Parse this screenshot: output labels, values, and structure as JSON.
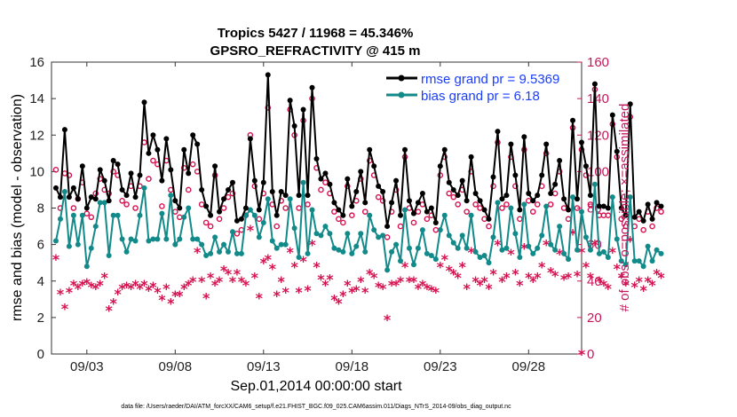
{
  "chart_data": {
    "type": "line",
    "title_line1": "Tropics 5427 / 11968 = 45.346%",
    "title_line2": "GPSRO_REFRACTIVITY @ 415 m",
    "xlabel": "Sep.01,2014 00:00:00 start",
    "ylabel_left": "rmse and bias (model - observation)",
    "ylabel_right": "# of obs: o=possible; ×=assimilated",
    "footer": "data file: /Users/raeder/DAI/ATM_forcXX/CAM6_setup/f.e21.FHIST_BGC.f09_025.CAM6assim.011/Diags_NTrS_2014-09/obs_diag_output.nc",
    "xlim": [
      1,
      31
    ],
    "ylim_left": [
      0,
      16
    ],
    "ylim_right": [
      0,
      160
    ],
    "x_ticks": [
      3,
      8,
      13,
      18,
      23,
      28
    ],
    "x_tick_labels": [
      "09/03",
      "09/08",
      "09/13",
      "09/18",
      "09/23",
      "09/28"
    ],
    "y_left_ticks": [
      "0",
      "2",
      "4",
      "6",
      "8",
      "10",
      "12",
      "14",
      "16"
    ],
    "y_right_ticks": [
      "0",
      "20",
      "40",
      "60",
      "80",
      "100",
      "120",
      "140",
      "160"
    ],
    "colors": {
      "rmse": "#000000",
      "bias": "#138a8a",
      "obs": "#d6114f",
      "legend_text": "#1a3cff"
    },
    "legend": [
      {
        "name": "rmse",
        "label": "rmse grand pr = 9.5369"
      },
      {
        "name": "bias",
        "label": "bias grand pr = 6.18"
      }
    ],
    "series": [
      {
        "name": "rmse",
        "x_start": 1.25,
        "x_step": 0.25,
        "values": [
          9.1,
          8.6,
          12.3,
          8.6,
          9.1,
          8.5,
          10.3,
          8.0,
          8.6,
          8.5,
          10.1,
          9.5,
          8.4,
          10.6,
          10.4,
          9.0,
          8.7,
          9.9,
          8.6,
          9.8,
          13.8,
          11.0,
          12.0,
          11.2,
          9.5,
          11.8,
          10.1,
          8.4,
          8.0,
          11.2,
          9.9,
          12.0,
          11.5,
          9.0,
          8.1,
          7.6,
          10.3,
          7.8,
          8.5,
          9.0,
          9.4,
          7.3,
          7.4,
          8.0,
          11.8,
          9.5,
          7.9,
          9.4,
          15.3,
          8.9,
          7.6,
          8.9,
          8.7,
          13.9,
          12.5,
          8.7,
          13.4,
          8.7,
          14.6,
          10.7,
          9.6,
          9.9,
          9.3,
          8.3,
          7.9,
          7.6,
          9.6,
          8.1,
          8.9,
          10.0,
          8.3,
          11.2,
          10.3,
          9.2,
          8.9,
          7.0,
          8.3,
          9.5,
          7.6,
          11.2,
          8.4,
          7.7,
          8.3,
          8.8,
          7.8,
          8.0,
          7.2,
          10.3,
          11.2,
          9.4,
          9.0,
          8.7,
          9.5,
          8.4,
          10.8,
          8.8,
          8.4,
          7.9,
          7.4,
          9.7,
          12.2,
          8.5,
          8.7,
          11.5,
          9.8,
          7.9,
          11.9,
          8.8,
          8.4,
          8.7,
          9.8,
          11.5,
          8.8,
          9.3,
          10.6,
          8.5,
          7.9,
          12.8,
          8.5,
          11.6,
          10.3,
          8.7,
          14.8,
          8.1,
          8.1,
          8.0,
          13.1,
          11.1,
          8.0,
          7.6,
          13.7,
          7.5,
          7.8,
          7.3,
          8.2,
          7.4,
          8.3,
          8.1
        ]
      },
      {
        "name": "bias",
        "x_start": 1.25,
        "x_step": 0.25,
        "values": [
          6.2,
          7.4,
          8.9,
          5.9,
          7.6,
          6.0,
          7.6,
          4.8,
          5.8,
          7.0,
          8.3,
          8.3,
          5.4,
          7.6,
          7.6,
          6.3,
          5.6,
          6.3,
          6.2,
          7.6,
          9.1,
          6.2,
          6.3,
          6.3,
          7.7,
          6.3,
          8.7,
          6.0,
          6.3,
          7.5,
          8.0,
          6.3,
          6.3,
          6.0,
          5.4,
          5.5,
          6.4,
          5.6,
          6.0,
          5.6,
          6.7,
          5.5,
          5.5,
          7.6,
          7.9,
          7.6,
          6.4,
          7.2,
          8.5,
          6.2,
          5.8,
          6.0,
          6.0,
          8.5,
          6.9,
          5.3,
          9.4,
          5.5,
          7.9,
          6.6,
          6.5,
          7.0,
          6.6,
          5.8,
          5.7,
          5.6,
          6.6,
          5.5,
          5.9,
          6.6,
          5.6,
          7.6,
          6.8,
          6.4,
          6.5,
          4.6,
          5.6,
          6.0,
          5.1,
          7.9,
          5.8,
          4.9,
          5.8,
          6.8,
          5.5,
          5.4,
          5.2,
          6.8,
          7.6,
          6.5,
          6.1,
          5.8,
          6.5,
          5.8,
          7.6,
          5.6,
          5.3,
          5.4,
          5.0,
          6.4,
          8.3,
          5.7,
          5.8,
          8.0,
          6.6,
          5.3,
          8.2,
          5.9,
          5.5,
          5.8,
          6.5,
          8.1,
          6.0,
          5.7,
          7.0,
          5.5,
          5.2,
          8.6,
          5.7,
          7.8,
          6.4,
          5.7,
          9.3,
          5.5,
          5.6,
          5.3,
          8.6,
          6.3,
          5.1,
          4.9,
          8.6,
          5.1,
          5.1,
          4.8,
          5.9,
          5.1,
          5.7,
          5.5
        ]
      },
      {
        "name": "obs_possible",
        "x_start": 1.25,
        "x_step": 0.25,
        "values": [
          101,
          80,
          99,
          98,
          80,
          85,
          94,
          77,
          75,
          88,
          96,
          90,
          88,
          100,
          98,
          84,
          82,
          92,
          80,
          92,
          116,
          96,
          106,
          104,
          81,
          106,
          90,
          78,
          75,
          102,
          90,
          104,
          100,
          82,
          72,
          70,
          98,
          74,
          80,
          86,
          88,
          66,
          68,
          76,
          120,
          92,
          74,
          88,
          135,
          82,
          70,
          84,
          80,
          134,
          120,
          80,
          128,
          82,
          140,
          102,
          90,
          94,
          88,
          78,
          74,
          72,
          92,
          76,
          84,
          96,
          78,
          106,
          98,
          86,
          84,
          64,
          78,
          90,
          70,
          108,
          80,
          72,
          78,
          82,
          74,
          76,
          68,
          98,
          108,
          88,
          86,
          82,
          90,
          78,
          100,
          82,
          80,
          74,
          70,
          92,
          116,
          80,
          82,
          108,
          92,
          74,
          112,
          84,
          78,
          82,
          92,
          110,
          82,
          88,
          100,
          80,
          74,
          124,
          80,
          112,
          98,
          82,
          145,
          76,
          76,
          76,
          126,
          108,
          74,
          70,
          130,
          70,
          74,
          68,
          78,
          70,
          80,
          78
        ]
      },
      {
        "name": "obs_assimilated",
        "x_start": 1.25,
        "x_step": 0.25,
        "values": [
          52,
          33,
          25,
          34,
          38,
          36,
          38,
          39,
          37,
          36,
          38,
          42,
          24,
          28,
          33,
          36,
          37,
          36,
          38,
          36,
          38,
          35,
          37,
          34,
          30,
          36,
          28,
          32,
          32,
          36,
          38,
          40,
          56,
          40,
          31,
          42,
          38,
          40,
          46,
          44,
          40,
          44,
          40,
          38,
          68,
          42,
          31,
          50,
          52,
          47,
          32,
          40,
          34,
          56,
          48,
          34,
          51,
          35,
          60,
          48,
          41,
          38,
          41,
          30,
          28,
          32,
          38,
          34,
          35,
          40,
          34,
          44,
          42,
          37,
          36,
          19,
          38,
          38,
          40,
          48,
          40,
          40,
          36,
          38,
          36,
          35,
          34,
          48,
          52,
          46,
          44,
          42,
          48,
          36,
          56,
          40,
          38,
          40,
          36,
          44,
          60,
          40,
          42,
          55,
          44,
          38,
          58,
          42,
          40,
          42,
          48,
          60,
          45,
          43,
          55,
          41,
          42,
          66,
          43,
          56,
          48,
          42,
          60,
          40,
          38,
          36,
          56,
          47,
          42,
          38,
          62,
          37,
          40,
          35,
          40,
          38,
          44,
          42
        ]
      }
    ]
  }
}
